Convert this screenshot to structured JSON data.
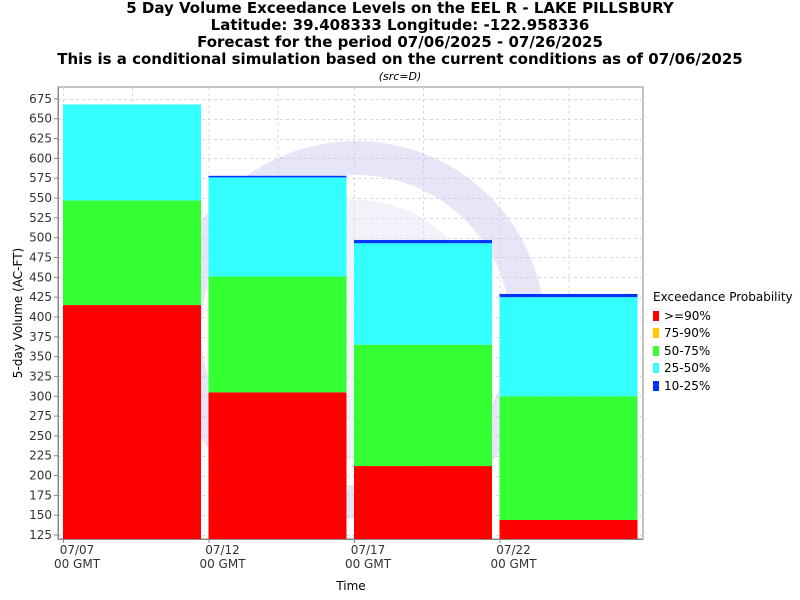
{
  "titles": {
    "line1": "5 Day Volume Exceedance Levels on the EEL R - LAKE PILLSBURY",
    "line2": "Latitude: 39.408333 Longitude: -122.958336",
    "line3": "Forecast for the period 07/06/2025 - 07/26/2025",
    "line4": "This is a conditional simulation based on the current conditions as of 07/06/2025",
    "src": "(src=D)"
  },
  "legend": {
    "title": "Exceedance Probability",
    "items": [
      {
        "label": ">=90%",
        "color": "#ff0000"
      },
      {
        "label": "75-90%",
        "color": "#ffc800"
      },
      {
        "label": "50-75%",
        "color": "#33ff33"
      },
      {
        "label": "25-50%",
        "color": "#33ffff"
      },
      {
        "label": "10-25%",
        "color": "#0033ff"
      }
    ]
  },
  "chart_data": {
    "type": "bar",
    "stacked": true,
    "xlabel": "Time",
    "ylabel": "5-day Volume (AC-FT)",
    "ylim": [
      120,
      690
    ],
    "yticks": [
      125,
      150,
      175,
      200,
      225,
      250,
      275,
      300,
      325,
      350,
      375,
      400,
      425,
      450,
      475,
      500,
      525,
      550,
      575,
      600,
      625,
      650,
      675
    ],
    "xticks": [
      {
        "line1": "07/07",
        "line2": "00 GMT"
      },
      {
        "line1": "07/12",
        "line2": "00 GMT"
      },
      {
        "line1": "07/17",
        "line2": "00 GMT"
      },
      {
        "line1": "07/22",
        "line2": "00 GMT"
      }
    ],
    "categories": [
      "07/07",
      "07/12",
      "07/17",
      "07/22"
    ],
    "series": [
      {
        "name": ">=90%",
        "color": "#ff0000",
        "top_values": [
          415,
          305,
          212,
          144
        ]
      },
      {
        "name": "75-90%",
        "color": "#ffc800",
        "top_values": [
          415,
          305,
          212,
          144
        ]
      },
      {
        "name": "50-75%",
        "color": "#33ff33",
        "top_values": [
          547,
          451,
          365,
          300
        ]
      },
      {
        "name": "25-50%",
        "color": "#33ffff",
        "top_values": [
          668,
          576,
          493,
          425
        ]
      },
      {
        "name": "10-25%",
        "color": "#0033ff",
        "top_values": [
          668,
          578,
          497,
          429
        ]
      }
    ],
    "grid": true,
    "legend_position": "right"
  }
}
